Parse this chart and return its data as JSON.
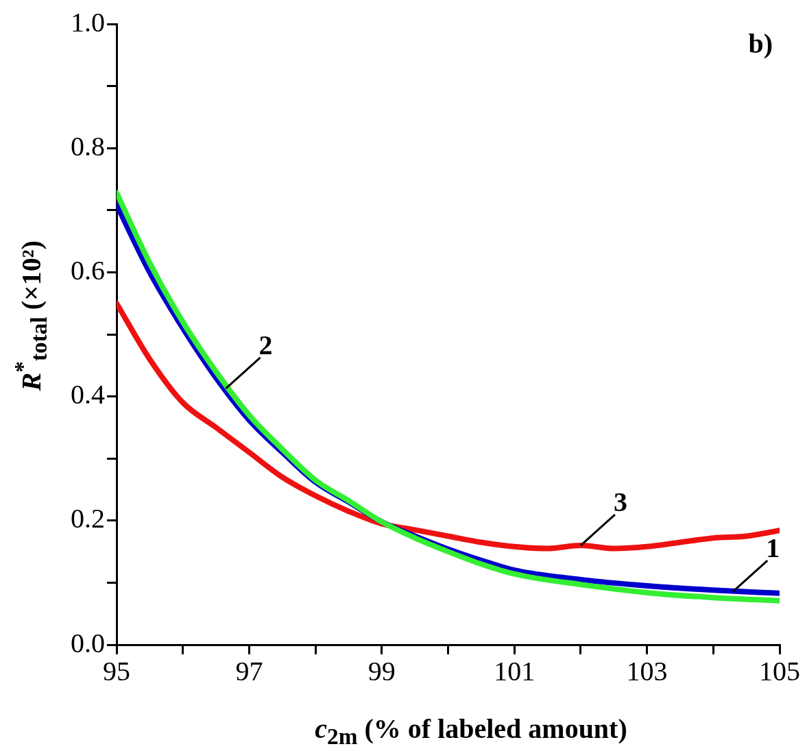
{
  "chart_data": {
    "type": "line",
    "xlabel": "c$_{2m}$ (% of labeled amount)",
    "ylabel": "R$^{*}$$_{total}$ (×10²)",
    "xlim": [
      95,
      105
    ],
    "xticks": [
      95,
      {
        "value": 96,
        "label": null
      },
      97,
      {
        "value": 98,
        "label": null
      },
      99,
      {
        "value": 100,
        "label": null
      },
      101,
      {
        "value": 102,
        "label": null
      },
      103,
      {
        "value": 104,
        "label": null
      },
      105
    ],
    "ylim": [
      0,
      1
    ],
    "yticks": [
      {
        "value": 0,
        "label": "0.0"
      },
      {
        "value": 0.1,
        "label": null
      },
      0.2,
      {
        "value": 0.3,
        "label": null
      },
      0.4,
      {
        "value": 0.5,
        "label": null
      },
      0.6,
      {
        "value": 0.7,
        "label": null
      },
      0.8,
      {
        "value": 0.9,
        "label": null
      },
      {
        "value": 1,
        "label": "1.0"
      }
    ],
    "marker": "none",
    "line_style": "solid",
    "legend": false,
    "series": [
      {
        "color": "#ee1111",
        "x": [
          95,
          95.5,
          96,
          96.5,
          97,
          97.5,
          98,
          98.5,
          99,
          99.5,
          100,
          100.5,
          101,
          101.5,
          102,
          102.5,
          103,
          103.5,
          104,
          104.5,
          105
        ],
        "values": [
          0.55,
          0.46,
          0.39,
          0.35,
          0.31,
          0.27,
          0.24,
          0.215,
          0.195,
          0.185,
          0.175,
          0.165,
          0.158,
          0.155,
          0.16,
          0.155,
          0.158,
          0.165,
          0.172,
          0.175,
          0.184
        ]
      },
      {
        "color": "#0000cc",
        "x": [
          95,
          95.5,
          96,
          96.5,
          97,
          97.5,
          98,
          98.5,
          99,
          99.5,
          100,
          100.5,
          101,
          102,
          103,
          104,
          105
        ],
        "values": [
          0.709,
          0.6,
          0.51,
          0.43,
          0.362,
          0.31,
          0.262,
          0.23,
          0.198,
          0.175,
          0.154,
          0.136,
          0.12,
          0.105,
          0.095,
          0.088,
          0.083
        ]
      },
      {
        "color": "#33ee33",
        "x": [
          95,
          95.5,
          96,
          96.5,
          97,
          97.5,
          98,
          98.5,
          99,
          99.5,
          100,
          100.5,
          101,
          102,
          103,
          104,
          105
        ],
        "values": [
          0.728,
          0.615,
          0.52,
          0.44,
          0.37,
          0.315,
          0.265,
          0.232,
          0.198,
          0.172,
          0.15,
          0.13,
          0.114,
          0.097,
          0.084,
          0.076,
          0.071
        ]
      }
    ],
    "annotations": [
      "b)",
      {
        "text": "1",
        "x": 104.3,
        "y": 0.086
      },
      {
        "text": "2",
        "x": 96.65,
        "y": 0.413
      },
      {
        "text": "3",
        "x": 102,
        "y": 0.16
      }
    ]
  }
}
